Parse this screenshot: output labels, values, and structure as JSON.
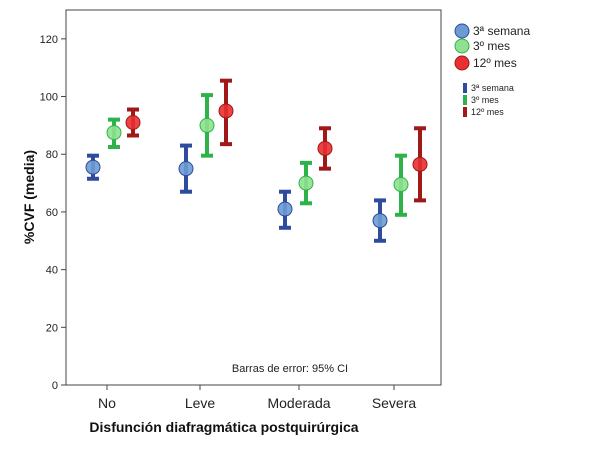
{
  "chart_data": {
    "type": "scatter",
    "title": "",
    "xlabel": "Disfunción diafragmática postquirúrgica",
    "ylabel": "%CVF (media)",
    "ylim": [
      0,
      130
    ],
    "yticks": [
      0,
      20,
      40,
      60,
      80,
      100,
      120
    ],
    "categories": [
      "No",
      "Leve",
      "Moderada",
      "Severa"
    ],
    "error_bars": "95% CI",
    "note": "Barras de error: 95% CI",
    "legend_position": "right",
    "series": [
      {
        "name": "3ª semana",
        "color": "#6b9bd2",
        "bar_color": "#2e4b9e",
        "mean": [
          75.5,
          75,
          61,
          57
        ],
        "ci_low": [
          71.5,
          67,
          54.5,
          50
        ],
        "ci_high": [
          79.5,
          83,
          67,
          64
        ]
      },
      {
        "name": "3º mes",
        "color": "#8fe08f",
        "bar_color": "#2db34a",
        "mean": [
          87.5,
          90,
          70,
          69.5
        ],
        "ci_low": [
          82.5,
          79.5,
          63,
          59
        ],
        "ci_high": [
          92,
          100.5,
          77,
          79.5
        ]
      },
      {
        "name": "12º mes",
        "color": "#e83030",
        "bar_color": "#a01818",
        "mean": [
          91,
          95,
          82,
          76.5
        ],
        "ci_low": [
          86.5,
          83.5,
          75,
          64
        ],
        "ci_high": [
          95.5,
          105.5,
          89,
          89
        ]
      }
    ]
  }
}
